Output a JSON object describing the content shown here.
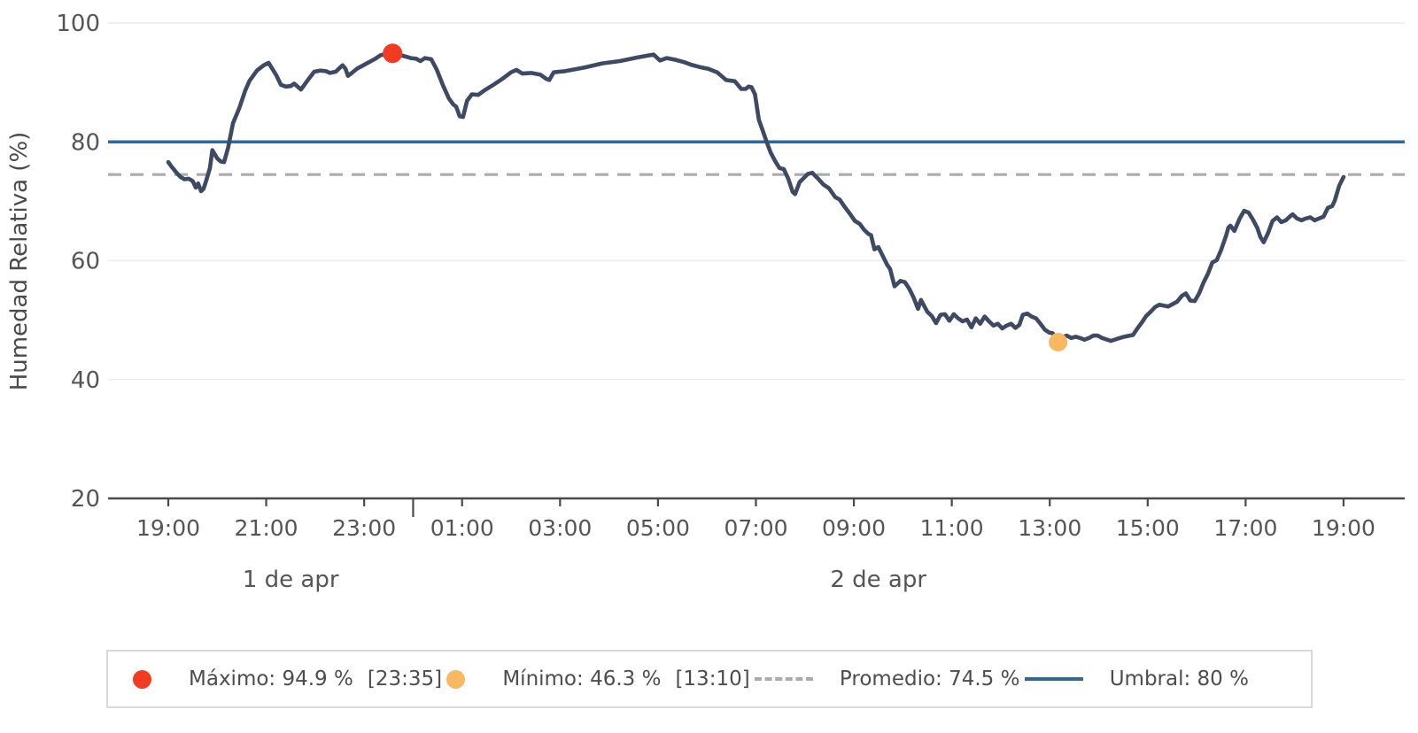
{
  "chart_data": {
    "type": "line",
    "ylabel": "Humedad Relativa (%)",
    "ylim": [
      20,
      100
    ],
    "yticks": [
      20,
      40,
      60,
      80,
      100
    ],
    "x_span_hours": 24,
    "xticks": [
      {
        "t": 0,
        "label": "19:00"
      },
      {
        "t": 2,
        "label": "21:00"
      },
      {
        "t": 4,
        "label": "23:00"
      },
      {
        "t": 6,
        "label": "01:00"
      },
      {
        "t": 8,
        "label": "03:00"
      },
      {
        "t": 10,
        "label": "05:00"
      },
      {
        "t": 12,
        "label": "07:00"
      },
      {
        "t": 14,
        "label": "09:00"
      },
      {
        "t": 16,
        "label": "11:00"
      },
      {
        "t": 18,
        "label": "13:00"
      },
      {
        "t": 20,
        "label": "15:00"
      },
      {
        "t": 22,
        "label": "17:00"
      },
      {
        "t": 24,
        "label": "19:00"
      }
    ],
    "midnight_divider_t": 5,
    "date_labels": [
      {
        "label": "1 de apr",
        "t_center": 2.5
      },
      {
        "label": "2 de apr",
        "t_center": 14.5
      }
    ],
    "grid": true,
    "legend_position": "bottom",
    "threshold_line": {
      "name": "Umbral",
      "value": 80,
      "color": "#31689b"
    },
    "average_line": {
      "name": "Promedio",
      "value": 74.5,
      "color": "#a8acb1"
    },
    "max_point": {
      "t": 4.58,
      "value": 94.9,
      "time_label": "23:35",
      "color": "#f23b20"
    },
    "min_point": {
      "t": 18.17,
      "value": 46.3,
      "time_label": "13:10",
      "color": "#f8b862"
    },
    "series": [
      {
        "name": "Humedad Relativa",
        "color": "#3e4a63",
        "points": [
          [
            0.0,
            76.6
          ],
          [
            0.08,
            75.7
          ],
          [
            0.17,
            74.8
          ],
          [
            0.25,
            74.1
          ],
          [
            0.33,
            73.7
          ],
          [
            0.42,
            73.8
          ],
          [
            0.5,
            73.4
          ],
          [
            0.56,
            72.3
          ],
          [
            0.61,
            73.0
          ],
          [
            0.67,
            71.7
          ],
          [
            0.72,
            72.1
          ],
          [
            0.78,
            73.6
          ],
          [
            0.85,
            75.6
          ],
          [
            0.9,
            78.6
          ],
          [
            1.0,
            77.2
          ],
          [
            1.07,
            76.7
          ],
          [
            1.14,
            76.6
          ],
          [
            1.22,
            79.0
          ],
          [
            1.32,
            83.1
          ],
          [
            1.45,
            85.7
          ],
          [
            1.57,
            88.6
          ],
          [
            1.66,
            90.3
          ],
          [
            1.81,
            92.0
          ],
          [
            1.95,
            92.9
          ],
          [
            2.05,
            93.3
          ],
          [
            2.2,
            91.3
          ],
          [
            2.3,
            89.6
          ],
          [
            2.4,
            89.3
          ],
          [
            2.5,
            89.4
          ],
          [
            2.57,
            89.8
          ],
          [
            2.64,
            89.3
          ],
          [
            2.71,
            88.8
          ],
          [
            2.85,
            90.4
          ],
          [
            2.98,
            91.8
          ],
          [
            3.1,
            92.0
          ],
          [
            3.22,
            91.9
          ],
          [
            3.3,
            91.6
          ],
          [
            3.42,
            91.8
          ],
          [
            3.52,
            92.6
          ],
          [
            3.56,
            92.9
          ],
          [
            3.62,
            92.3
          ],
          [
            3.67,
            91.1
          ],
          [
            3.75,
            91.6
          ],
          [
            3.85,
            92.3
          ],
          [
            4.03,
            93.1
          ],
          [
            4.21,
            93.9
          ],
          [
            4.34,
            94.6
          ],
          [
            4.45,
            94.8
          ],
          [
            4.58,
            94.9
          ],
          [
            4.7,
            94.7
          ],
          [
            4.83,
            94.4
          ],
          [
            4.95,
            94.1
          ],
          [
            5.06,
            94.0
          ],
          [
            5.15,
            93.6
          ],
          [
            5.24,
            94.1
          ],
          [
            5.37,
            93.9
          ],
          [
            5.48,
            92.2
          ],
          [
            5.61,
            89.5
          ],
          [
            5.73,
            87.3
          ],
          [
            5.82,
            86.3
          ],
          [
            5.88,
            85.9
          ],
          [
            5.95,
            84.3
          ],
          [
            6.02,
            84.2
          ],
          [
            6.1,
            86.9
          ],
          [
            6.2,
            88.0
          ],
          [
            6.33,
            87.9
          ],
          [
            6.46,
            88.7
          ],
          [
            6.64,
            89.6
          ],
          [
            6.82,
            90.6
          ],
          [
            7.0,
            91.7
          ],
          [
            7.11,
            92.1
          ],
          [
            7.23,
            91.5
          ],
          [
            7.41,
            91.6
          ],
          [
            7.6,
            91.3
          ],
          [
            7.72,
            90.6
          ],
          [
            7.78,
            90.4
          ],
          [
            7.87,
            91.7
          ],
          [
            8.1,
            91.9
          ],
          [
            8.5,
            92.5
          ],
          [
            8.86,
            93.2
          ],
          [
            9.22,
            93.6
          ],
          [
            9.58,
            94.2
          ],
          [
            9.91,
            94.7
          ],
          [
            10.04,
            93.7
          ],
          [
            10.18,
            94.1
          ],
          [
            10.36,
            93.8
          ],
          [
            10.54,
            93.4
          ],
          [
            10.67,
            93.0
          ],
          [
            10.85,
            92.6
          ],
          [
            11.03,
            92.3
          ],
          [
            11.21,
            91.7
          ],
          [
            11.39,
            90.4
          ],
          [
            11.57,
            90.2
          ],
          [
            11.7,
            88.9
          ],
          [
            11.79,
            88.9
          ],
          [
            11.85,
            89.3
          ],
          [
            11.91,
            89.2
          ],
          [
            11.98,
            88.0
          ],
          [
            12.06,
            83.7
          ],
          [
            12.13,
            82.1
          ],
          [
            12.22,
            80.0
          ],
          [
            12.3,
            78.2
          ],
          [
            12.39,
            76.8
          ],
          [
            12.48,
            75.6
          ],
          [
            12.57,
            75.4
          ],
          [
            12.66,
            73.8
          ],
          [
            12.75,
            71.6
          ],
          [
            12.8,
            71.2
          ],
          [
            12.89,
            73.2
          ],
          [
            13.06,
            74.6
          ],
          [
            13.15,
            74.8
          ],
          [
            13.26,
            73.9
          ],
          [
            13.38,
            72.8
          ],
          [
            13.49,
            72.2
          ],
          [
            13.62,
            70.7
          ],
          [
            13.71,
            70.3
          ],
          [
            13.8,
            69.2
          ],
          [
            13.92,
            67.9
          ],
          [
            14.02,
            66.7
          ],
          [
            14.12,
            66.2
          ],
          [
            14.21,
            65.2
          ],
          [
            14.3,
            64.5
          ],
          [
            14.35,
            64.3
          ],
          [
            14.42,
            61.9
          ],
          [
            14.5,
            62.3
          ],
          [
            14.59,
            60.8
          ],
          [
            14.68,
            59.3
          ],
          [
            14.74,
            58.6
          ],
          [
            14.83,
            55.7
          ],
          [
            14.95,
            56.6
          ],
          [
            15.04,
            56.4
          ],
          [
            15.13,
            55.3
          ],
          [
            15.22,
            53.8
          ],
          [
            15.31,
            51.9
          ],
          [
            15.37,
            53.4
          ],
          [
            15.5,
            51.4
          ],
          [
            15.59,
            50.7
          ],
          [
            15.68,
            49.5
          ],
          [
            15.77,
            50.9
          ],
          [
            15.86,
            51.0
          ],
          [
            15.95,
            49.9
          ],
          [
            16.04,
            51.0
          ],
          [
            16.13,
            50.3
          ],
          [
            16.22,
            49.8
          ],
          [
            16.31,
            50.1
          ],
          [
            16.4,
            48.8
          ],
          [
            16.49,
            50.3
          ],
          [
            16.58,
            49.4
          ],
          [
            16.67,
            50.6
          ],
          [
            16.76,
            49.8
          ],
          [
            16.85,
            49.1
          ],
          [
            16.94,
            49.4
          ],
          [
            17.03,
            48.6
          ],
          [
            17.12,
            49.1
          ],
          [
            17.21,
            49.4
          ],
          [
            17.3,
            48.7
          ],
          [
            17.38,
            49.2
          ],
          [
            17.45,
            50.9
          ],
          [
            17.54,
            51.1
          ],
          [
            17.63,
            50.6
          ],
          [
            17.72,
            50.3
          ],
          [
            17.81,
            49.4
          ],
          [
            17.9,
            48.4
          ],
          [
            17.99,
            47.9
          ],
          [
            18.06,
            47.8
          ],
          [
            18.17,
            46.5
          ],
          [
            18.28,
            47.2
          ],
          [
            18.35,
            47.4
          ],
          [
            18.44,
            47.0
          ],
          [
            18.53,
            47.2
          ],
          [
            18.62,
            47.0
          ],
          [
            18.71,
            46.7
          ],
          [
            18.8,
            47.0
          ],
          [
            18.89,
            47.4
          ],
          [
            18.98,
            47.4
          ],
          [
            19.07,
            47.0
          ],
          [
            19.25,
            46.5
          ],
          [
            19.43,
            47.0
          ],
          [
            19.52,
            47.2
          ],
          [
            19.7,
            47.5
          ],
          [
            19.79,
            48.6
          ],
          [
            19.88,
            49.6
          ],
          [
            19.97,
            50.7
          ],
          [
            20.06,
            51.4
          ],
          [
            20.15,
            52.2
          ],
          [
            20.24,
            52.6
          ],
          [
            20.42,
            52.3
          ],
          [
            20.6,
            53.1
          ],
          [
            20.7,
            54.1
          ],
          [
            20.78,
            54.5
          ],
          [
            20.87,
            53.3
          ],
          [
            20.96,
            53.2
          ],
          [
            21.05,
            54.5
          ],
          [
            21.14,
            56.3
          ],
          [
            21.23,
            57.8
          ],
          [
            21.32,
            59.7
          ],
          [
            21.41,
            60.1
          ],
          [
            21.5,
            61.8
          ],
          [
            21.6,
            64.2
          ],
          [
            21.65,
            65.6
          ],
          [
            21.69,
            65.9
          ],
          [
            21.77,
            65.0
          ],
          [
            21.88,
            67.1
          ],
          [
            21.97,
            68.4
          ],
          [
            22.06,
            68.1
          ],
          [
            22.15,
            66.9
          ],
          [
            22.24,
            65.5
          ],
          [
            22.3,
            64.0
          ],
          [
            22.37,
            63.1
          ],
          [
            22.46,
            64.7
          ],
          [
            22.55,
            66.7
          ],
          [
            22.64,
            67.3
          ],
          [
            22.73,
            66.5
          ],
          [
            22.82,
            66.8
          ],
          [
            22.91,
            67.5
          ],
          [
            22.96,
            67.8
          ],
          [
            23.05,
            67.1
          ],
          [
            23.14,
            66.8
          ],
          [
            23.23,
            67.1
          ],
          [
            23.32,
            67.3
          ],
          [
            23.41,
            66.8
          ],
          [
            23.5,
            67.1
          ],
          [
            23.59,
            67.4
          ],
          [
            23.68,
            68.9
          ],
          [
            23.77,
            69.2
          ],
          [
            23.82,
            70.1
          ],
          [
            23.91,
            72.6
          ],
          [
            24.0,
            74.1
          ]
        ]
      }
    ],
    "colors": {
      "line": "#3e4a63",
      "threshold": "#31689b",
      "average": "#a8acb1",
      "max_dot": "#f23b20",
      "min_dot": "#f8b862",
      "grid": "#ececef",
      "axis": "#4a4a4a",
      "tick_text": "#555555"
    }
  },
  "legend": {
    "items": [
      {
        "marker": "dot",
        "color": "#f23b20",
        "label": "Máximo: 94.9 %",
        "time": "[23:35]"
      },
      {
        "marker": "dot",
        "color": "#f8b862",
        "label": "Mínimo: 46.3 %",
        "time": "[13:10]"
      },
      {
        "marker": "dash",
        "color": "#a8acb1",
        "label": "Promedio: 74.5 %"
      },
      {
        "marker": "line",
        "color": "#31689b",
        "label": "Umbral: 80 %"
      }
    ]
  }
}
